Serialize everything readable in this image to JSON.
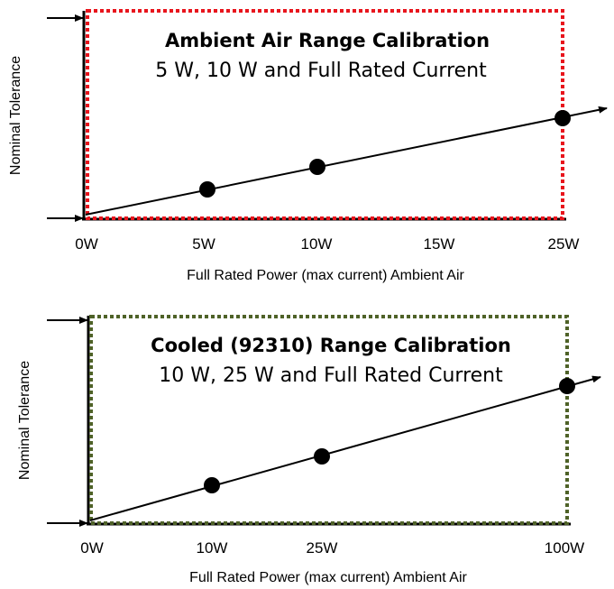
{
  "panels": [
    {
      "title": "Ambient Air Range Calibration",
      "subtitle": "5 W, 10 W and Full Rated Current",
      "ylabel": "Nominal Tolerance",
      "xlabel": "Full Rated Power (max current) Ambient Air",
      "box_color": "#e8141c",
      "x_ticks": [
        "0W",
        "5W",
        "10W",
        "15W",
        "25W"
      ],
      "points": [
        "5W",
        "10W",
        "25W"
      ]
    },
    {
      "title": "Cooled (92310) Range Calibration",
      "subtitle": "10 W, 25 W and Full Rated Current",
      "ylabel": "Nominal Tolerance",
      "xlabel": "Full Rated Power (max current) Ambient Air",
      "box_color": "#4f6228",
      "x_ticks": [
        "0W",
        "10W",
        "25W",
        "100W"
      ],
      "points": [
        "10W",
        "25W",
        "100W"
      ]
    }
  ]
}
